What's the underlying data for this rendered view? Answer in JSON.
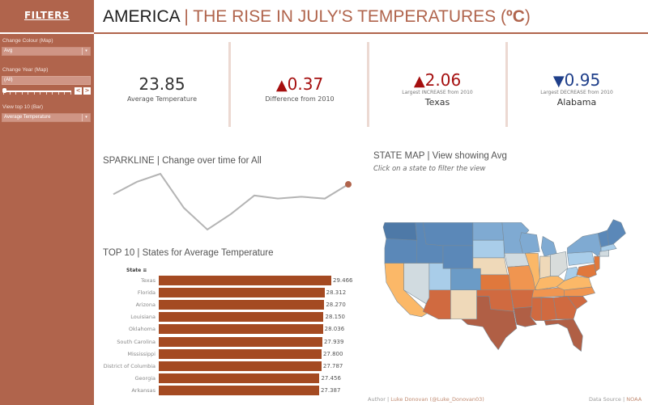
{
  "sidebar": {
    "title": "FILTERS",
    "filters": [
      {
        "label": "Change Colour (Map)",
        "value": "Avg"
      },
      {
        "label": "Change Year (Map)",
        "value": "(All)"
      },
      {
        "label": "View top 10 (Bar)",
        "value": "Average Temperature"
      }
    ],
    "prev_label": "<",
    "next_label": ">",
    "dropdown_arrow": "▾"
  },
  "header": {
    "main": "AMERICA",
    "separator": " | ",
    "subtitle": "THE RISE IN JULY'S TEMPERATURES (",
    "unit": "ºC",
    "close": ")"
  },
  "kpis": [
    {
      "value": "23.85",
      "label": "Average Temperature"
    },
    {
      "indicator": "▲",
      "value": "0.37",
      "label": "Difference from 2010"
    },
    {
      "indicator": "▲",
      "value": "2.06",
      "label": "Largest INCREASE from 2010",
      "state": "Texas"
    },
    {
      "indicator": "▼",
      "value": "0.95",
      "label": "Largest DECREASE from 2010",
      "state": "Alabama"
    }
  ],
  "sparkline": {
    "title": "SPARKLINE | Change over time for All",
    "values": [
      23.62,
      23.82,
      23.95,
      23.4,
      23.05,
      23.3,
      23.6,
      23.55,
      23.58,
      23.55,
      23.78
    ],
    "line_color": "#b4b4b4",
    "end_color": "#b0644c"
  },
  "bar_chart": {
    "title": "TOP 10 | States for Average Temperature",
    "axis_header": "State",
    "sort_icon": "sort-descending-icon",
    "bar_color": "#a44a22"
  },
  "chart_data": {
    "type": "bar",
    "title": "TOP 10 | States for Average Temperature",
    "xlabel": "",
    "ylabel": "State",
    "orientation": "horizontal",
    "categories": [
      "Texas",
      "Florida",
      "Arizona",
      "Louisiana",
      "Oklahoma",
      "South Carolina",
      "Mississippi",
      "District of Columbia",
      "Georgia",
      "Arkansas"
    ],
    "values": [
      29.466,
      28.312,
      28.27,
      28.15,
      28.036,
      27.939,
      27.8,
      27.787,
      27.456,
      27.387
    ],
    "xlim": [
      0,
      29.466
    ]
  },
  "map": {
    "title": "STATE MAP | View showing Avg",
    "subtitle": "Click on a state to filter the view",
    "palette": {
      "coldest": "#4e79a7",
      "cold": "#5b88b8",
      "cool": "#6b9bc6",
      "mild_cool": "#7faad2",
      "light_blue": "#a9cde9",
      "neutral": "#d1dbe0",
      "neutral_grey": "#d8dcdb",
      "beige": "#efd9b9",
      "light_orange": "#fbb868",
      "orange": "#f09550",
      "dark_orange": "#e0783c",
      "rust": "#d06a40",
      "hottest": "#b05f45"
    }
  },
  "footer": {
    "author_label": "Author | ",
    "author": "Luke Donovan (@Luke_Donovan03)",
    "source_label": "Data Source | ",
    "source": "NOAA"
  }
}
